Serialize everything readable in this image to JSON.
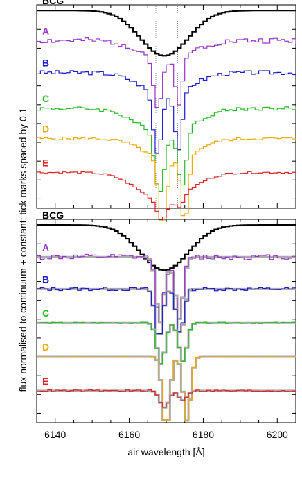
{
  "chart_data": [
    {
      "type": "line",
      "panel": "top",
      "xlim": [
        6135,
        6205
      ],
      "ylim": [
        -1.05,
        0.03
      ],
      "y_tick_step": 0.1,
      "grid": false,
      "xtick_labels_shown": false,
      "guide_lines_x": [
        6167.2,
        6173.1
      ],
      "series": [
        {
          "name": "BCG",
          "color": "#000000",
          "label_color": "#000000",
          "offset": 0.0,
          "step": 1.0,
          "profile": [
            {
              "c": 6169.5,
              "d": 0.24,
              "w": 6.5
            }
          ],
          "noise": 0.004,
          "seed": 1
        },
        {
          "name": "A",
          "color": "#9933cc",
          "label_color": "#9933cc",
          "offset": -0.16,
          "step": 1.0,
          "profile": [
            {
              "c": 6167.7,
              "d": 0.28,
              "w": 1.1
            },
            {
              "c": 6173.5,
              "d": 0.24,
              "w": 1.0
            },
            {
              "c": 6170,
              "d": 0.1,
              "w": 6.5
            }
          ],
          "noise": 0.03,
          "seed": 2
        },
        {
          "name": "B",
          "color": "#1a1acc",
          "label_color": "#1a1acc",
          "offset": -0.33,
          "step": 1.0,
          "profile": [
            {
              "c": 6167.6,
              "d": 0.32,
              "w": 1.1
            },
            {
              "c": 6173.4,
              "d": 0.3,
              "w": 1.0
            },
            {
              "c": 6170,
              "d": 0.12,
              "w": 6.5
            }
          ],
          "noise": 0.022,
          "seed": 3
        },
        {
          "name": "C",
          "color": "#22bb22",
          "label_color": "#22bb22",
          "offset": -0.52,
          "step": 1.0,
          "profile": [
            {
              "c": 6168.2,
              "d": 0.3,
              "w": 1.2
            },
            {
              "c": 6174.3,
              "d": 0.28,
              "w": 1.1
            },
            {
              "c": 6170,
              "d": 0.15,
              "w": 7.0
            }
          ],
          "noise": 0.02,
          "seed": 4
        },
        {
          "name": "D",
          "color": "#f0a800",
          "label_color": "#f0a800",
          "offset": -0.68,
          "step": 1.0,
          "profile": [
            {
              "c": 6169.0,
              "d": 0.36,
              "w": 1.1
            },
            {
              "c": 6175.0,
              "d": 0.34,
              "w": 1.0
            },
            {
              "c": 6171,
              "d": 0.12,
              "w": 6.5
            }
          ],
          "noise": 0.015,
          "seed": 5
        },
        {
          "name": "E",
          "color": "#dd2222",
          "label_color": "#dd2222",
          "offset": -0.86,
          "step": 1.0,
          "profile": [
            {
              "c": 6168.8,
              "d": 0.1,
              "w": 1.3
            },
            {
              "c": 6173.5,
              "d": 0.06,
              "w": 1.1
            },
            {
              "c": 6169.5,
              "d": 0.15,
              "w": 7.0
            }
          ],
          "noise": 0.01,
          "seed": 6
        }
      ]
    },
    {
      "type": "line",
      "panel": "bottom",
      "xlim": [
        6135,
        6205
      ],
      "ylim": [
        -1.05,
        0.03
      ],
      "y_tick_step": 0.1,
      "grid": false,
      "xtick_labels_shown": true,
      "xticks": [
        6140,
        6160,
        6180,
        6200
      ],
      "xlabel": "air wavelength [Å]",
      "series": [
        {
          "name": "BCG",
          "color": "#000000",
          "label_color": "#000000",
          "offset": 0.0,
          "step": 1.0,
          "profile": [
            {
              "c": 6169.5,
              "d": 0.24,
              "w": 6.5
            }
          ],
          "noise": 0.004,
          "seed": 11,
          "model": false
        },
        {
          "name": "A",
          "color": "#9933cc",
          "label_color": "#9933cc",
          "offset": -0.17,
          "step": 1.0,
          "profile": [
            {
              "c": 6168.3,
              "d": 0.32,
              "w": 1.0
            },
            {
              "c": 6173.6,
              "d": 0.3,
              "w": 1.0
            },
            {
              "c": 6171,
              "d": 0.05,
              "w": 2.5
            }
          ],
          "noise": 0.028,
          "seed": 12,
          "model": true
        },
        {
          "name": "B",
          "color": "#1a1acc",
          "label_color": "#1a1acc",
          "offset": -0.34,
          "step": 1.0,
          "profile": [
            {
              "c": 6168.0,
              "d": 0.27,
              "w": 1.0
            },
            {
              "c": 6173.8,
              "d": 0.24,
              "w": 1.0
            }
          ],
          "noise": 0.018,
          "seed": 13,
          "model": true
        },
        {
          "name": "C",
          "color": "#22bb22",
          "label_color": "#22bb22",
          "offset": -0.52,
          "step": 1.0,
          "profile": [
            {
              "c": 6168.6,
              "d": 0.22,
              "w": 1.1
            },
            {
              "c": 6174.5,
              "d": 0.2,
              "w": 1.1
            }
          ],
          "noise": 0.008,
          "seed": 14,
          "model": true
        },
        {
          "name": "D",
          "color": "#f0a800",
          "label_color": "#f0a800",
          "offset": -0.7,
          "step": 1.0,
          "profile": [
            {
              "c": 6170.0,
              "d": 0.38,
              "w": 1.0
            },
            {
              "c": 6175.6,
              "d": 0.34,
              "w": 1.0
            }
          ],
          "noise": 0.002,
          "seed": 15,
          "model": true
        },
        {
          "name": "E",
          "color": "#dd2222",
          "label_color": "#dd2222",
          "offset": -0.88,
          "step": 1.0,
          "profile": [
            {
              "c": 6169.5,
              "d": 0.09,
              "w": 1.2
            },
            {
              "c": 6174.5,
              "d": 0.05,
              "w": 1.1
            }
          ],
          "noise": 0.01,
          "seed": 16,
          "model": true
        }
      ],
      "model_color": "#aaaaaa"
    }
  ],
  "shared_ylabel": "flux normalised to continuum + constant; tick marks spaced by 0.1"
}
